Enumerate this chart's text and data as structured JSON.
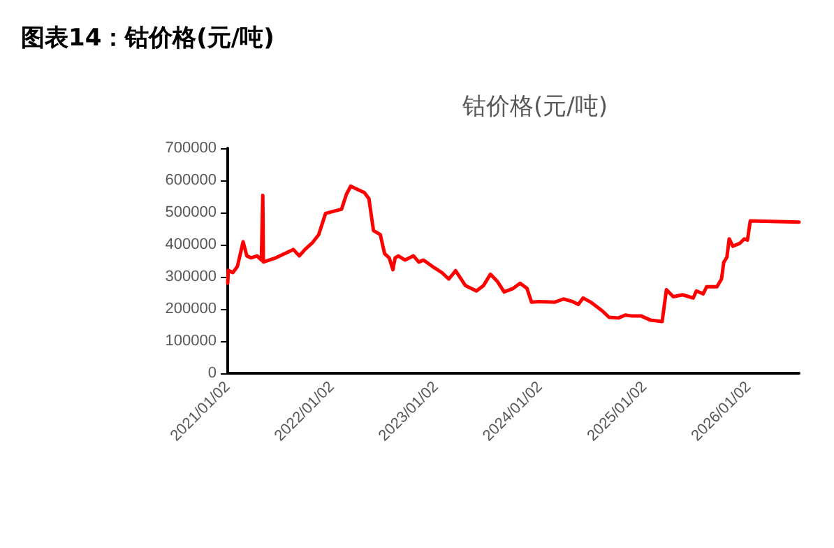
{
  "chart_data": {
    "type": "line",
    "title": "图表14：钴价格(元/吨)",
    "subtitle": "钴价格(元/吨)",
    "xlim": [
      "2021-01-02",
      "2026-06-28"
    ],
    "xticks": [
      {
        "value": "2021-01-02",
        "label": "2021/01/02"
      },
      {
        "value": "2022-01-02",
        "label": "2022/01/02"
      },
      {
        "value": "2023-01-02",
        "label": "2023/01/02"
      },
      {
        "value": "2024-01-02",
        "label": "2024/01/02"
      },
      {
        "value": "2025-01-02",
        "label": "2025/01/02"
      },
      {
        "value": "2026-01-02",
        "label": "2026/01/02"
      }
    ],
    "ylim": [
      0,
      700000
    ],
    "yticks": [
      0,
      100000,
      200000,
      300000,
      400000,
      500000,
      600000,
      700000
    ],
    "grid": false,
    "marker": "none",
    "line_style": "solid",
    "series": [
      {
        "color": "#ff0000",
        "x": [
          "2021-01-02",
          "2021-01-04",
          "2021-01-20",
          "2021-02-05",
          "2021-02-25",
          "2021-03-10",
          "2021-03-25",
          "2021-04-15",
          "2021-04-30",
          "2021-05-03",
          "2021-05-05",
          "2021-05-07",
          "2021-06-20",
          "2021-08-20",
          "2021-09-10",
          "2021-09-30",
          "2021-10-25",
          "2021-11-17",
          "2021-12-11",
          "2022-01-05",
          "2022-02-05",
          "2022-02-22",
          "2022-03-09",
          "2022-03-25",
          "2022-04-26",
          "2022-05-12",
          "2022-05-28",
          "2022-06-21",
          "2022-07-06",
          "2022-07-22",
          "2022-08-04",
          "2022-08-12",
          "2022-08-23",
          "2022-09-16",
          "2022-10-15",
          "2022-11-03",
          "2022-11-19",
          "2022-12-21",
          "2023-01-23",
          "2023-02-16",
          "2023-03-12",
          "2023-04-15",
          "2023-05-24",
          "2023-06-18",
          "2023-07-12",
          "2023-08-05",
          "2023-08-29",
          "2023-09-30",
          "2023-10-24",
          "2023-11-17",
          "2023-12-03",
          "2023-12-27",
          "2024-02-22",
          "2024-03-24",
          "2024-04-25",
          "2024-05-15",
          "2024-06-01",
          "2024-06-28",
          "2024-08-07",
          "2024-08-31",
          "2024-10-03",
          "2024-10-27",
          "2024-11-20",
          "2024-12-22",
          "2025-01-24",
          "2025-03-05",
          "2025-03-20",
          "2025-04-13",
          "2025-05-16",
          "2025-06-22",
          "2025-07-03",
          "2025-07-27",
          "2025-08-08",
          "2025-09-13",
          "2025-09-29",
          "2025-10-07",
          "2025-10-18",
          "2025-10-26",
          "2025-11-08",
          "2025-12-02",
          "2025-12-18",
          "2025-12-29",
          "2026-01-08",
          "2026-06-28"
        ],
        "values": [
          280000,
          320000,
          313000,
          332000,
          409000,
          365000,
          359000,
          365000,
          352000,
          352000,
          553000,
          346000,
          359000,
          385000,
          365000,
          385000,
          405000,
          431000,
          497000,
          503000,
          510000,
          556000,
          582000,
          575000,
          562000,
          543000,
          444000,
          431000,
          372000,
          359000,
          322000,
          359000,
          365000,
          352000,
          365000,
          346000,
          352000,
          332000,
          313000,
          293000,
          319000,
          273000,
          256000,
          273000,
          308000,
          286000,
          253000,
          264000,
          280000,
          264000,
          221000,
          223000,
          221000,
          231000,
          223000,
          214000,
          234000,
          221000,
          194000,
          174000,
          172000,
          181000,
          178000,
          178000,
          165000,
          161000,
          260000,
          238000,
          244000,
          234000,
          256000,
          247000,
          269000,
          269000,
          293000,
          345000,
          361000,
          418000,
          395000,
          404000,
          418000,
          414000,
          474000,
          470000
        ]
      }
    ]
  }
}
